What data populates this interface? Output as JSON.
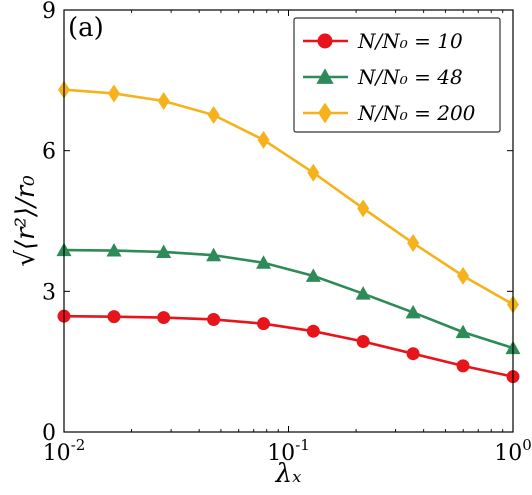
{
  "chart_data": {
    "type": "line",
    "panel_label": "(a)",
    "xlabel": "λ_x",
    "ylabel": "√⟨r²⟩/r₀",
    "xscale": "log",
    "xlim": [
      0.01,
      1
    ],
    "ylim": [
      0,
      9
    ],
    "xticks": [
      {
        "value": 0.01,
        "base": "10",
        "exp": "-2"
      },
      {
        "value": 0.1,
        "base": "10",
        "exp": "-1"
      },
      {
        "value": 1,
        "base": "10",
        "exp": "0"
      }
    ],
    "yticks": [
      0,
      3,
      6,
      9
    ],
    "legend_position": "top-right",
    "x": [
      0.01,
      0.0167,
      0.0278,
      0.0464,
      0.0774,
      0.129,
      0.215,
      0.359,
      0.599,
      1.0
    ],
    "series": [
      {
        "name": "N/N₀ = 10",
        "color": "#e8141c",
        "marker": "circle",
        "values": [
          2.47,
          2.46,
          2.44,
          2.4,
          2.31,
          2.15,
          1.93,
          1.67,
          1.41,
          1.18
        ]
      },
      {
        "name": "N/N₀ = 48",
        "color": "#2e8b57",
        "marker": "triangle",
        "values": [
          3.88,
          3.87,
          3.84,
          3.77,
          3.61,
          3.33,
          2.95,
          2.55,
          2.13,
          1.79
        ]
      },
      {
        "name": "N/N₀ = 200",
        "color": "#f5b21c",
        "marker": "diamond",
        "values": [
          7.3,
          7.22,
          7.06,
          6.76,
          6.23,
          5.53,
          4.77,
          4.03,
          3.33,
          2.72
        ]
      }
    ]
  }
}
